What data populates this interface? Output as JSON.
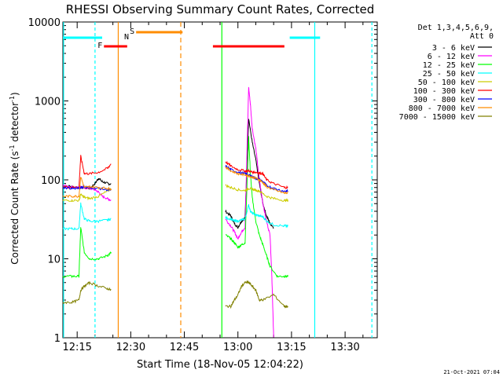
{
  "chart_data": {
    "type": "line",
    "title": "RHESSI Observing Summary Count Rates, Corrected",
    "xlabel": "Start Time (18-Nov-05 12:04:22)",
    "ylabel_main": "Corrected Count Rate (s",
    "ylabel_sup1": "-1",
    "ylabel_mid": " detector",
    "ylabel_sup2": "-1",
    "ylabel_end": ")",
    "yscale": "log",
    "ylim": [
      1,
      10000
    ],
    "xlim_minutes": [
      7,
      47
    ],
    "x_ticks": [
      {
        "t": 11,
        "label": "12:15"
      },
      {
        "t": 26,
        "label": "12:30"
      },
      {
        "t": 41,
        "label": "12:45"
      },
      {
        "t": 56,
        "label": "13:00"
      },
      {
        "t": 71,
        "label": "13:15"
      },
      {
        "t": 86,
        "label": "13:30"
      }
    ],
    "y_ticks": [
      {
        "v": 1,
        "label": "1"
      },
      {
        "v": 10,
        "label": "10"
      },
      {
        "v": 100,
        "label": "100"
      },
      {
        "v": 1000,
        "label": "1000"
      },
      {
        "v": 10000,
        "label": "10000"
      }
    ],
    "legend_header": [
      "Det 1,3,4,5,6,9,",
      "Att 0"
    ],
    "legend_position": "right",
    "footer": "21-Oct-2021 07:04",
    "series": [
      {
        "name": "3 - 6 keV",
        "color": "#000000",
        "seg1": [
          [
            0,
            85
          ],
          [
            5,
            82
          ],
          [
            10,
            80
          ],
          [
            15,
            78
          ],
          [
            18,
            90
          ],
          [
            20,
            105
          ],
          [
            22,
            95
          ],
          [
            25,
            90
          ],
          [
            27,
            88
          ]
        ],
        "seg2": [
          [
            53,
            40
          ],
          [
            56,
            35
          ],
          [
            58,
            28
          ],
          [
            60,
            25
          ],
          [
            62,
            30
          ],
          [
            64,
            33
          ],
          [
            66,
            600
          ],
          [
            68,
            300
          ],
          [
            70,
            180
          ],
          [
            72,
            90
          ],
          [
            74,
            50
          ],
          [
            76,
            35
          ],
          [
            78,
            28
          ],
          [
            80,
            25
          ]
        ]
      },
      {
        "name": "6 - 12 keV",
        "color": "#ff00ff",
        "seg1": [
          [
            0,
            85
          ],
          [
            5,
            82
          ],
          [
            10,
            80
          ],
          [
            15,
            78
          ],
          [
            18,
            75
          ],
          [
            20,
            70
          ],
          [
            22,
            62
          ],
          [
            25,
            58
          ],
          [
            27,
            55
          ]
        ],
        "seg2": [
          [
            53,
            32
          ],
          [
            56,
            26
          ],
          [
            58,
            22
          ],
          [
            60,
            18
          ],
          [
            62,
            22
          ],
          [
            64,
            25
          ],
          [
            66,
            1500
          ],
          [
            67,
            900
          ],
          [
            68,
            450
          ],
          [
            70,
            250
          ],
          [
            72,
            100
          ],
          [
            74,
            50
          ],
          [
            76,
            30
          ],
          [
            78,
            20
          ],
          [
            79,
            6
          ],
          [
            80,
            1
          ]
        ]
      },
      {
        "name": "12 - 25 keV",
        "color": "#00ff00",
        "seg1": [
          [
            0,
            6
          ],
          [
            5,
            6
          ],
          [
            9,
            6
          ],
          [
            10,
            25
          ],
          [
            12,
            12
          ],
          [
            15,
            10
          ],
          [
            20,
            10
          ],
          [
            25,
            11
          ],
          [
            27,
            12
          ]
        ],
        "seg2": [
          [
            53,
            20
          ],
          [
            56,
            18
          ],
          [
            58,
            16
          ],
          [
            60,
            14
          ],
          [
            62,
            15
          ],
          [
            64,
            16
          ],
          [
            66,
            350
          ],
          [
            67,
            120
          ],
          [
            68,
            60
          ],
          [
            70,
            30
          ],
          [
            72,
            20
          ],
          [
            74,
            15
          ],
          [
            76,
            11
          ],
          [
            78,
            8
          ],
          [
            82,
            6
          ],
          [
            86,
            6
          ],
          [
            88,
            6
          ]
        ]
      },
      {
        "name": "25 - 50 keV",
        "color": "#00ffff",
        "seg1": [
          [
            0,
            24
          ],
          [
            5,
            24
          ],
          [
            9,
            24
          ],
          [
            10,
            50
          ],
          [
            12,
            32
          ],
          [
            15,
            30
          ],
          [
            20,
            30
          ],
          [
            25,
            31
          ],
          [
            27,
            32
          ]
        ],
        "seg2": [
          [
            53,
            33
          ],
          [
            56,
            32
          ],
          [
            58,
            30
          ],
          [
            60,
            30
          ],
          [
            62,
            31
          ],
          [
            64,
            32
          ],
          [
            66,
            48
          ],
          [
            67,
            40
          ],
          [
            68,
            38
          ],
          [
            70,
            36
          ],
          [
            72,
            35
          ],
          [
            74,
            34
          ],
          [
            76,
            30
          ],
          [
            80,
            27
          ],
          [
            86,
            26
          ],
          [
            88,
            26
          ]
        ]
      },
      {
        "name": "50 - 100 keV",
        "color": "#cccc00",
        "seg1": [
          [
            0,
            55
          ],
          [
            5,
            55
          ],
          [
            9,
            55
          ],
          [
            10,
            65
          ],
          [
            12,
            60
          ],
          [
            15,
            58
          ],
          [
            20,
            62
          ],
          [
            25,
            72
          ],
          [
            27,
            78
          ]
        ],
        "seg2": [
          [
            53,
            85
          ],
          [
            56,
            80
          ],
          [
            60,
            75
          ],
          [
            64,
            73
          ],
          [
            66,
            78
          ],
          [
            68,
            76
          ],
          [
            70,
            74
          ],
          [
            72,
            72
          ],
          [
            76,
            62
          ],
          [
            80,
            58
          ],
          [
            86,
            55
          ],
          [
            88,
            55
          ]
        ]
      },
      {
        "name": "100 - 300 keV",
        "color": "#ff0000",
        "seg1": [
          [
            0,
            82
          ],
          [
            5,
            80
          ],
          [
            9,
            80
          ],
          [
            10,
            200
          ],
          [
            12,
            120
          ],
          [
            15,
            120
          ],
          [
            20,
            125
          ],
          [
            25,
            140
          ],
          [
            27,
            160
          ]
        ],
        "seg2": [
          [
            53,
            170
          ],
          [
            56,
            150
          ],
          [
            60,
            135
          ],
          [
            64,
            130
          ],
          [
            66,
            130
          ],
          [
            68,
            125
          ],
          [
            70,
            125
          ],
          [
            72,
            122
          ],
          [
            74,
            120
          ],
          [
            76,
            100
          ],
          [
            80,
            90
          ],
          [
            86,
            80
          ],
          [
            88,
            80
          ]
        ]
      },
      {
        "name": "300 - 800 keV",
        "color": "#0000ff",
        "seg1": [
          [
            0,
            80
          ],
          [
            5,
            78
          ],
          [
            9,
            78
          ],
          [
            10,
            80
          ],
          [
            12,
            82
          ],
          [
            15,
            80
          ],
          [
            20,
            78
          ],
          [
            25,
            75
          ],
          [
            27,
            74
          ]
        ],
        "seg2": [
          [
            53,
            150
          ],
          [
            56,
            135
          ],
          [
            60,
            125
          ],
          [
            64,
            120
          ],
          [
            66,
            115
          ],
          [
            68,
            110
          ],
          [
            70,
            105
          ],
          [
            72,
            100
          ],
          [
            74,
            95
          ],
          [
            76,
            85
          ],
          [
            80,
            78
          ],
          [
            86,
            72
          ],
          [
            88,
            72
          ]
        ]
      },
      {
        "name": "800 - 7000 keV",
        "color": "#ff8c00",
        "seg1": [
          [
            0,
            62
          ],
          [
            5,
            62
          ],
          [
            9,
            62
          ],
          [
            10,
            110
          ],
          [
            12,
            80
          ],
          [
            15,
            82
          ],
          [
            20,
            80
          ],
          [
            25,
            78
          ],
          [
            27,
            76
          ]
        ],
        "seg2": [
          [
            53,
            145
          ],
          [
            56,
            130
          ],
          [
            60,
            120
          ],
          [
            64,
            115
          ],
          [
            66,
            112
          ],
          [
            68,
            108
          ],
          [
            70,
            105
          ],
          [
            72,
            100
          ],
          [
            74,
            92
          ],
          [
            76,
            82
          ],
          [
            80,
            75
          ],
          [
            86,
            68
          ],
          [
            88,
            68
          ]
        ]
      },
      {
        "name": "7000 - 15000 keV",
        "color": "#808000",
        "seg1": [
          [
            0,
            2.8
          ],
          [
            5,
            2.8
          ],
          [
            9,
            3
          ],
          [
            10,
            4
          ],
          [
            12,
            4.5
          ],
          [
            15,
            5
          ],
          [
            20,
            4.5
          ],
          [
            25,
            4.2
          ],
          [
            27,
            4
          ]
        ],
        "seg2": [
          [
            53,
            2.5
          ],
          [
            56,
            2.5
          ],
          [
            58,
            3
          ],
          [
            60,
            3.5
          ],
          [
            62,
            4.5
          ],
          [
            64,
            5
          ],
          [
            66,
            5
          ],
          [
            68,
            4.5
          ],
          [
            70,
            4
          ],
          [
            72,
            3
          ],
          [
            74,
            3
          ],
          [
            80,
            3.5
          ],
          [
            86,
            2.5
          ],
          [
            88,
            2.5
          ]
        ]
      }
    ],
    "flags": [
      {
        "label": "N",
        "color": "#00ffff",
        "t0": 0,
        "t1": 11
      },
      {
        "label": "F",
        "color": "#ff0000",
        "t0": 11.5,
        "t1": 18
      },
      {
        "label": "S",
        "color": "#ff8c00",
        "t0": 20.5,
        "t1": 33.5
      }
    ],
    "extra_bars": [
      {
        "color": "#ff0000",
        "t0": 42,
        "t1": 62
      },
      {
        "color": "#00ffff",
        "t0": 63.5,
        "t1": 72
      }
    ]
  }
}
